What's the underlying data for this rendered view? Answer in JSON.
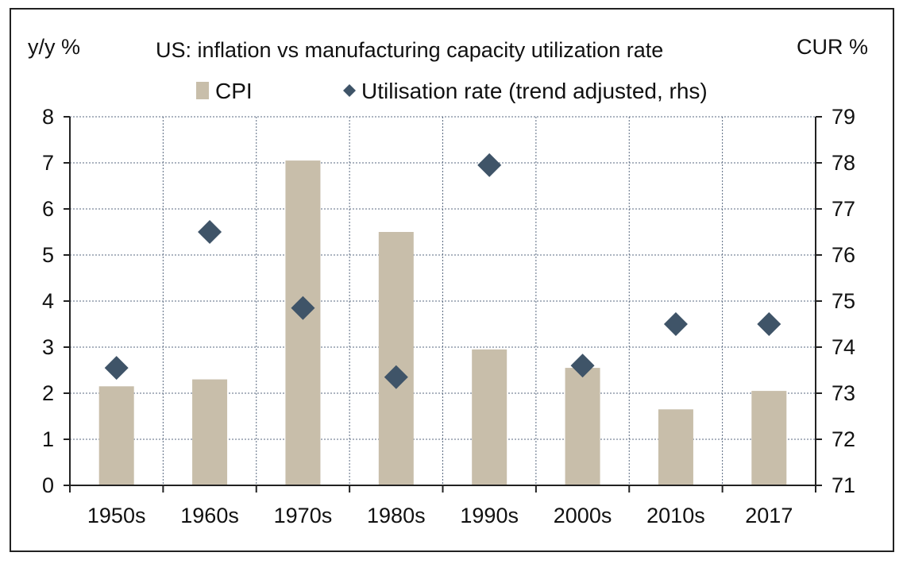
{
  "chart_data": {
    "type": "bar",
    "title": "US: inflation vs manufacturing capacity utilization rate",
    "ylabel_left": "y/y %",
    "ylabel_right": "CUR %",
    "categories": [
      "1950s",
      "1960s",
      "1970s",
      "1980s",
      "1990s",
      "2000s",
      "2010s",
      "2017"
    ],
    "ylim_left": [
      0,
      8
    ],
    "ylim_right": [
      71,
      79
    ],
    "yticks_left": [
      "0",
      "1",
      "2",
      "3",
      "4",
      "5",
      "6",
      "7",
      "8"
    ],
    "yticks_right": [
      "71",
      "72",
      "73",
      "74",
      "75",
      "76",
      "77",
      "78",
      "79"
    ],
    "grid": true,
    "legend_position": "top",
    "series": [
      {
        "name": "CPI",
        "type": "bar",
        "axis": "left",
        "color": "#c8beaa",
        "values": [
          2.15,
          2.3,
          7.05,
          5.5,
          2.95,
          2.55,
          1.65,
          2.05
        ]
      },
      {
        "name": "Utilisation rate (trend adjusted, rhs)",
        "type": "scatter",
        "marker": "diamond",
        "axis": "right",
        "color": "#3f5468",
        "values": [
          73.55,
          76.5,
          74.85,
          73.35,
          77.95,
          73.6,
          74.5,
          74.5
        ]
      }
    ]
  }
}
